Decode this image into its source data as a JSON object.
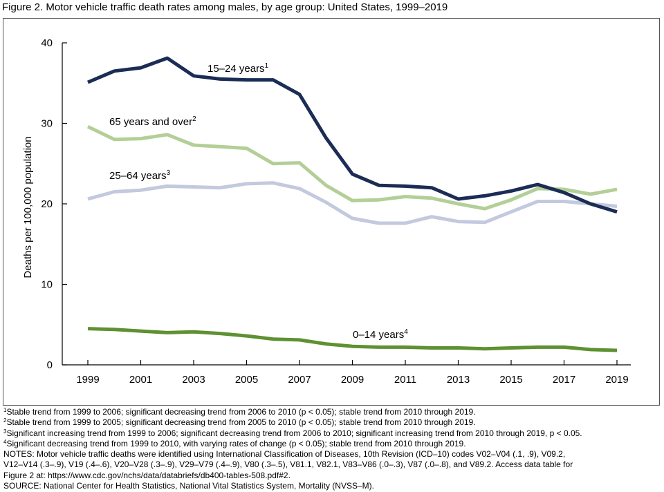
{
  "title": "Figure 2. Motor vehicle traffic death rates among males, by age group: United States, 1999–2019",
  "chart_data": {
    "type": "line",
    "ylabel": "Deaths per 100,000 population",
    "xlabel": "",
    "ylim": [
      0,
      40
    ],
    "yticks": [
      0,
      10,
      20,
      30,
      40
    ],
    "xlim": [
      1999,
      2019
    ],
    "xticks": [
      1999,
      2001,
      2003,
      2005,
      2007,
      2009,
      2011,
      2013,
      2015,
      2017,
      2019
    ],
    "x": [
      1999,
      2000,
      2001,
      2002,
      2003,
      2004,
      2005,
      2006,
      2007,
      2008,
      2009,
      2010,
      2011,
      2012,
      2013,
      2014,
      2015,
      2016,
      2017,
      2018,
      2019
    ],
    "series": [
      {
        "name": "15–24 years",
        "sup": "1",
        "color": "#1b2c55",
        "values": [
          35.1,
          36.5,
          36.9,
          38.1,
          35.9,
          35.5,
          35.4,
          35.4,
          33.6,
          28.2,
          23.7,
          22.3,
          22.2,
          22.0,
          20.6,
          21.0,
          21.6,
          22.4,
          21.4,
          20.0,
          19.0
        ]
      },
      {
        "name": "65 years and over",
        "sup": "2",
        "color": "#b3cf97",
        "values": [
          29.6,
          28.0,
          28.1,
          28.6,
          27.3,
          27.1,
          26.9,
          25.0,
          25.1,
          22.3,
          20.4,
          20.5,
          20.9,
          20.7,
          20.0,
          19.4,
          20.5,
          21.9,
          21.8,
          21.2,
          21.8
        ]
      },
      {
        "name": "25–64 years",
        "sup": "3",
        "color": "#c3c9de",
        "values": [
          20.6,
          21.5,
          21.7,
          22.2,
          22.1,
          22.0,
          22.5,
          22.6,
          21.9,
          20.2,
          18.2,
          17.6,
          17.6,
          18.4,
          17.8,
          17.7,
          19.0,
          20.3,
          20.3,
          20.0,
          19.7
        ]
      },
      {
        "name": "0–14 years",
        "sup": "4",
        "color": "#5e9131",
        "values": [
          4.5,
          4.4,
          4.2,
          4.0,
          4.1,
          3.9,
          3.6,
          3.2,
          3.1,
          2.6,
          2.3,
          2.2,
          2.2,
          2.1,
          2.1,
          2.0,
          2.1,
          2.2,
          2.2,
          1.9,
          1.8
        ]
      }
    ]
  },
  "footnotes": [
    {
      "sup": "1",
      "text": "Stable trend from 1999 to 2006; significant decreasing trend from 2006 to 2010 (p < 0.05); stable trend from 2010 through 2019."
    },
    {
      "sup": "2",
      "text": "Stable trend from 1999 to 2005; significant decreasing trend from 2005 to 2010  (p < 0.05); stable trend from 2010 through 2019."
    },
    {
      "sup": "3",
      "text": "Significant increasing trend from 1999 to 2006; significant decreasing trend from 2006 to 2010; significant increasing trend from 2010 through 2019, p < 0.05."
    },
    {
      "sup": "4",
      "text": "Significant decreasing trend from 1999 to 2010, with varying rates of change (p < 0.05); stable trend from 2010 through 2019."
    }
  ],
  "notes": {
    "line1": "NOTES: Motor vehicle traffic deaths were identified using International Classification of Diseases, 10th Revision (ICD–10) codes V02–V04 (.1, .9), V09.2,",
    "line2": "V12–V14 (.3–.9), V19 (.4–.6), V20–V28 (.3–.9), V29–V79 (.4–.9), V80 (.3–.5), V81.1, V82.1, V83–V86 (.0–.3), V87 (.0–.8), and V89.2. Access data table for",
    "line3": "Figure 2 at: https://www.cdc.gov/nchs/data/databriefs/db400-tables-508.pdf#2."
  },
  "source": "SOURCE: National Center for Health Statistics, National Vital Statistics System, Mortality (NVSS–M)."
}
